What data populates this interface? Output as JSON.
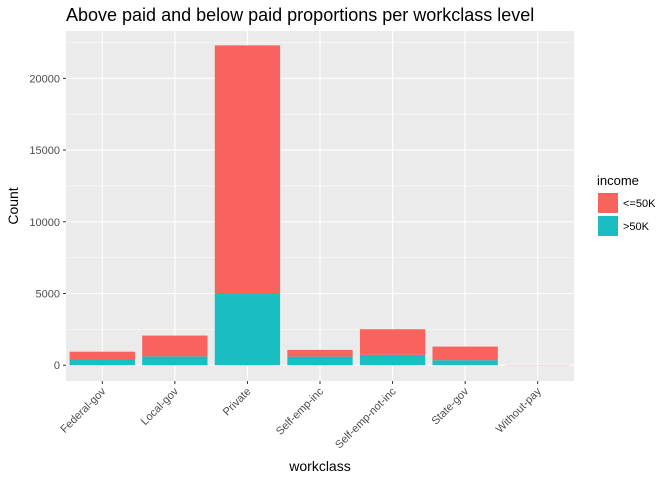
{
  "chart_data": {
    "type": "bar",
    "stacked": true,
    "title": "Above paid and below paid proportions per workclass level",
    "xlabel": "workclass",
    "ylabel": "Count",
    "ylim": [
      -1100,
      23300
    ],
    "yticks": [
      0,
      5000,
      10000,
      15000,
      20000
    ],
    "categories": [
      "Federal-gov",
      "Local-gov",
      "Private",
      "Self-emp-inc",
      "Self-emp-not-inc",
      "State-gov",
      "Without-pay"
    ],
    "series": [
      {
        "name": ">50K",
        "color": "#19BDC2",
        "values": [
          365,
          617,
          4963,
          600,
          724,
          353,
          0
        ]
      },
      {
        "name": "<=50K",
        "color": "#F8635E",
        "values": [
          578,
          1450,
          17333,
          467,
          1785,
          945,
          14
        ]
      }
    ],
    "legend": {
      "title": "income",
      "position": "right",
      "entries": [
        "<=50K",
        ">50K"
      ]
    },
    "grid": true,
    "panel_background": "#EBEBEB"
  }
}
